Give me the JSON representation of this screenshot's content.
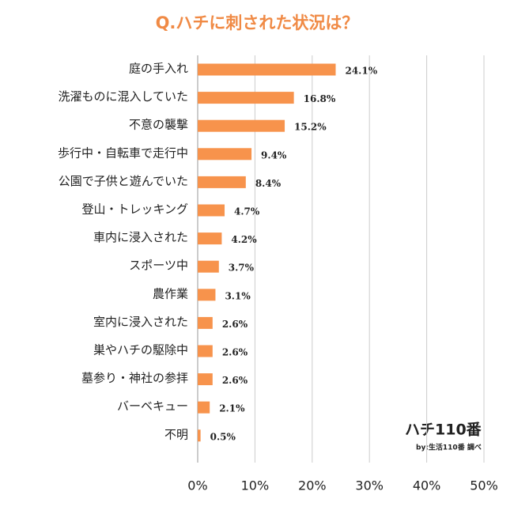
{
  "chart_data": {
    "type": "bar",
    "orientation": "horizontal",
    "title": "Q.ハチに刺された状況は？",
    "categories": [
      "庭の手入れ",
      "洗濯ものに混入していた",
      "不意の襲撃",
      "歩行中・自転車で走行中",
      "公園で子供と遊んでいた",
      "登山・トレッキング",
      "車内に浸入された",
      "スポーツ中",
      "農作業",
      "室内に浸入された",
      "巣やハチの駆除中",
      "墓参り・神社の参拝",
      "バーベキュー",
      "不明"
    ],
    "values": [
      24.1,
      16.8,
      15.2,
      9.4,
      8.4,
      4.7,
      4.2,
      3.7,
      3.1,
      2.6,
      2.6,
      2.6,
      2.1,
      0.5
    ],
    "value_labels": [
      "24.1%",
      "16.8%",
      "15.2%",
      "9.4%",
      "8.4%",
      "4.7%",
      "4.2%",
      "3.7%",
      "3.1%",
      "2.6%",
      "2.6%",
      "2.6%",
      "2.1%",
      "0.5%"
    ],
    "color": "#f7934c",
    "xlim": [
      0,
      50
    ],
    "xticks": [
      {
        "value": 0,
        "label": "0%"
      },
      {
        "value": 10,
        "label": "10%"
      },
      {
        "value": 20,
        "label": "20%"
      },
      {
        "value": 30,
        "label": "30%"
      },
      {
        "value": 40,
        "label": "40%"
      },
      {
        "value": 50,
        "label": "50%"
      }
    ],
    "grid": true,
    "logo": {
      "name": "ハチ110番",
      "credit": "by:生活110番 調べ"
    }
  }
}
